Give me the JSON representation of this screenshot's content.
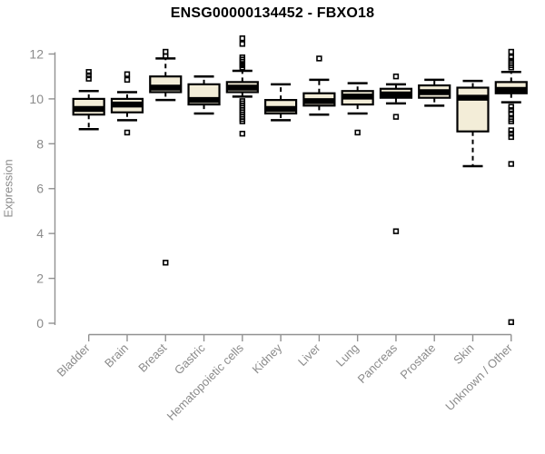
{
  "title": "ENSG00000134452 - FBXO18",
  "colors": {
    "box_fill": "#F3EDD8",
    "box_stroke": "#000000",
    "median": "#000000",
    "axis_line": "#919191",
    "tick_text": "#8B8B8B",
    "title_text": "#000000",
    "background": "#FFFFFF"
  },
  "chart_data": {
    "type": "boxplot",
    "title": "ENSG00000134452 - FBXO18",
    "xlabel": "",
    "ylabel": "Expression",
    "ylim": [
      0,
      12.75
    ],
    "yticks": [
      0,
      2,
      4,
      6,
      8,
      10,
      12
    ],
    "grid": false,
    "legend": "none",
    "x_tick_rotation_deg": 45,
    "categories": [
      "Bladder",
      "Brain",
      "Breast",
      "Gastric",
      "Hematopoietic cells",
      "Kidney",
      "Liver",
      "Lung",
      "Pancreas",
      "Prostate",
      "Skin",
      "Unknown / Other"
    ],
    "series": [
      {
        "name": "Bladder",
        "whislo": 8.65,
        "q1": 9.3,
        "med": 9.55,
        "q3": 10.0,
        "whishi": 10.35,
        "outliers": [
          10.9,
          11.05,
          11.2
        ]
      },
      {
        "name": "Brain",
        "whislo": 9.05,
        "q1": 9.4,
        "med": 9.75,
        "q3": 10.0,
        "whishi": 10.3,
        "outliers": [
          8.5,
          10.85,
          11.1
        ]
      },
      {
        "name": "Breast",
        "whislo": 9.95,
        "q1": 10.3,
        "med": 10.5,
        "q3": 11.0,
        "whishi": 11.8,
        "outliers": [
          2.7,
          11.9,
          12.1
        ]
      },
      {
        "name": "Gastric",
        "whislo": 9.35,
        "q1": 9.75,
        "med": 9.95,
        "q3": 10.65,
        "whishi": 11.0,
        "outliers": []
      },
      {
        "name": "Hematopoietic cells",
        "whislo": 10.1,
        "q1": 10.3,
        "med": 10.5,
        "q3": 10.75,
        "whishi": 11.25,
        "outliers": [
          8.45,
          9.0,
          9.1,
          9.2,
          9.3,
          9.4,
          9.5,
          9.6,
          9.7,
          9.8,
          9.9,
          11.4,
          11.5,
          11.55,
          11.65,
          11.75,
          11.85,
          12.45,
          12.7
        ]
      },
      {
        "name": "Kidney",
        "whislo": 9.05,
        "q1": 9.35,
        "med": 9.55,
        "q3": 9.95,
        "whishi": 10.65,
        "outliers": []
      },
      {
        "name": "Liver",
        "whislo": 9.3,
        "q1": 9.7,
        "med": 9.9,
        "q3": 10.25,
        "whishi": 10.85,
        "outliers": [
          11.8
        ]
      },
      {
        "name": "Lung",
        "whislo": 9.35,
        "q1": 9.75,
        "med": 10.1,
        "q3": 10.35,
        "whishi": 10.7,
        "outliers": [
          8.5
        ]
      },
      {
        "name": "Pancreas",
        "whislo": 9.8,
        "q1": 10.05,
        "med": 10.2,
        "q3": 10.45,
        "whishi": 10.65,
        "outliers": [
          4.1,
          9.2,
          11.0
        ]
      },
      {
        "name": "Prostate",
        "whislo": 9.7,
        "q1": 10.05,
        "med": 10.3,
        "q3": 10.6,
        "whishi": 10.85,
        "outliers": []
      },
      {
        "name": "Skin",
        "whislo": 7.0,
        "q1": 8.55,
        "med": 10.05,
        "q3": 10.5,
        "whishi": 10.8,
        "outliers": []
      },
      {
        "name": "Unknown / Other",
        "whislo": 9.85,
        "q1": 10.25,
        "med": 10.4,
        "q3": 10.75,
        "whishi": 11.2,
        "outliers": [
          0.05,
          7.1,
          8.3,
          8.45,
          8.6,
          9.0,
          9.1,
          9.35,
          9.5,
          9.65,
          11.4,
          11.5,
          11.6,
          11.7,
          11.85,
          12.1
        ]
      }
    ]
  }
}
